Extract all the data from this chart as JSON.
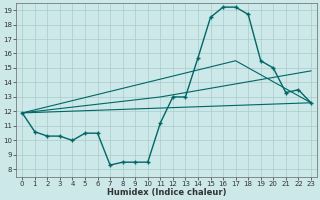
{
  "title": "",
  "xlabel": "Humidex (Indice chaleur)",
  "ylabel": "",
  "background_color": "#cce8e8",
  "grid_color": "#aacccc",
  "line_color": "#006666",
  "xlim": [
    -0.5,
    23.5
  ],
  "ylim": [
    7.5,
    19.5
  ],
  "xticks": [
    0,
    1,
    2,
    3,
    4,
    5,
    6,
    7,
    8,
    9,
    10,
    11,
    12,
    13,
    14,
    15,
    16,
    17,
    18,
    19,
    20,
    21,
    22,
    23
  ],
  "yticks": [
    8,
    9,
    10,
    11,
    12,
    13,
    14,
    15,
    16,
    17,
    18,
    19
  ],
  "line1_x": [
    0,
    1,
    2,
    3,
    4,
    5,
    6,
    7,
    8,
    9,
    10,
    11,
    12,
    13,
    14,
    15,
    16,
    17,
    18,
    19,
    20,
    21,
    22,
    23
  ],
  "line1_y": [
    11.9,
    10.6,
    10.3,
    10.3,
    10.0,
    10.5,
    10.5,
    8.3,
    8.5,
    8.5,
    8.5,
    11.2,
    13.0,
    13.0,
    15.7,
    18.5,
    19.2,
    19.2,
    18.7,
    15.5,
    15.0,
    13.3,
    13.5,
    12.6
  ],
  "line2_x": [
    0,
    23
  ],
  "line2_y": [
    11.9,
    12.6
  ],
  "line3_x": [
    0,
    11,
    23
  ],
  "line3_y": [
    11.9,
    13.0,
    14.8
  ],
  "line4_x": [
    0,
    17,
    23
  ],
  "line4_y": [
    11.9,
    15.5,
    12.6
  ]
}
